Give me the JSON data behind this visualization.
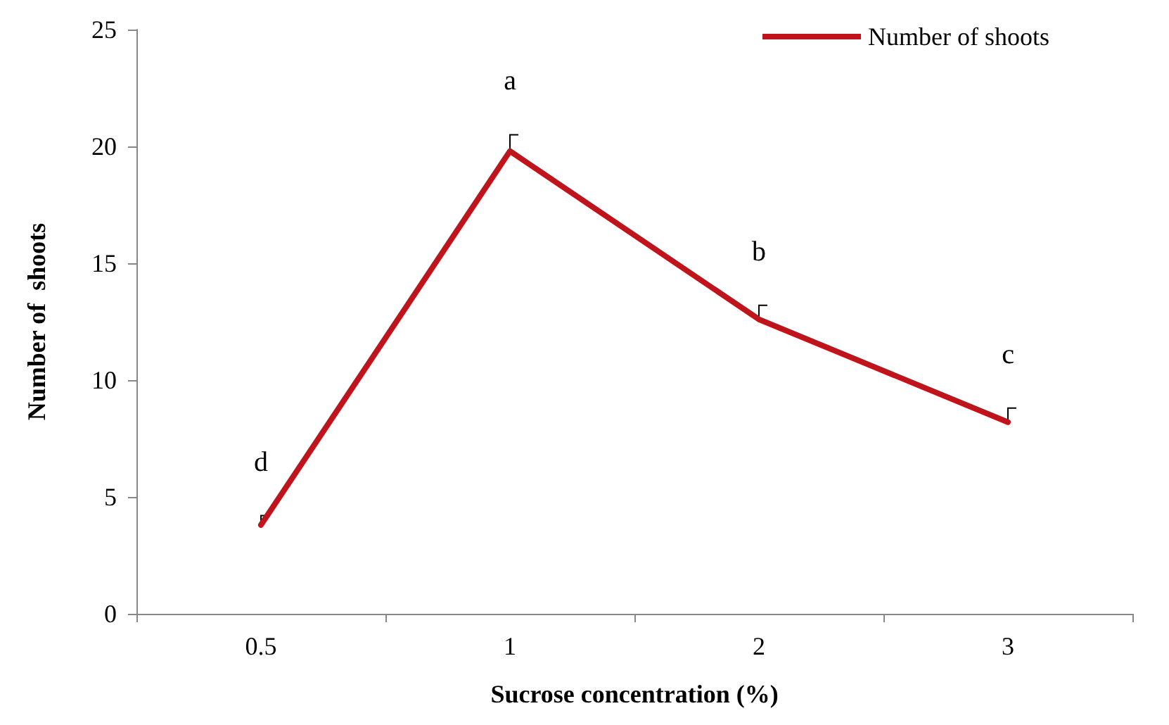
{
  "chart_data": {
    "type": "line",
    "xlabel": "Sucrose concentration (%)",
    "ylabel": "Number of  shoots",
    "categories": [
      "0.5",
      "1",
      "2",
      "3"
    ],
    "series": [
      {
        "name": "Number of shoots",
        "color": "#c0141c",
        "values": [
          3.8,
          19.8,
          12.6,
          8.2
        ],
        "errors": [
          [
            3.8,
            4.2
          ],
          [
            19.8,
            20.5
          ],
          [
            12.6,
            13.2
          ],
          [
            8.2,
            8.8
          ]
        ]
      }
    ],
    "ylim": [
      0,
      25
    ],
    "yticks": [
      0,
      5,
      10,
      15,
      20,
      25
    ],
    "grid": false,
    "legend": "top right",
    "marker": "none",
    "line_style": "solid",
    "annotations": [
      "d",
      "a",
      "b",
      "c"
    ]
  }
}
